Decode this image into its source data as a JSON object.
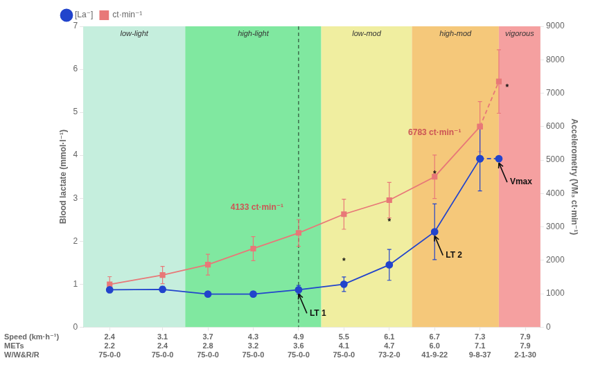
{
  "chart_data": {
    "type": "line",
    "ylabel": "Blood lactate (mmol·l⁻¹)",
    "y2label": "Accelerometry (VM₃ ct·min⁻¹)",
    "xlabel": "Speed (km·h⁻¹)",
    "xlim": [
      2.05,
      8.1
    ],
    "xticks": [
      2.4,
      3.1,
      3.7,
      4.3,
      4.9,
      5.5,
      6.1,
      6.7,
      7.3,
      7.9
    ],
    "ylim": [
      0,
      7
    ],
    "yticks": [
      0,
      1,
      2,
      3,
      4,
      5,
      6,
      7
    ],
    "y2lim": [
      0,
      9000
    ],
    "y2ticks": [
      0,
      1000,
      2000,
      3000,
      4000,
      5000,
      6000,
      7000,
      8000,
      9000
    ],
    "x_rows": [
      {
        "label": "METs",
        "values": [
          "2.2",
          "2.4",
          "2.8",
          "3.2",
          "3.6",
          "4.1",
          "4.7",
          "6.0",
          "7.1",
          "7.9"
        ]
      },
      {
        "label": "W/W&R/R",
        "values": [
          "75-0-0",
          "75-0-0",
          "75-0-0",
          "75-0-0",
          "75-0-0",
          "75-0-0",
          "73-2-0",
          "41-9-22",
          "9-8-37",
          "2-1-30"
        ]
      }
    ],
    "series": [
      {
        "name": "[La⁻]",
        "color": "#2244cc",
        "marker": "circle",
        "line_style": "solid",
        "axis": "y",
        "x": [
          2.4,
          3.1,
          3.7,
          4.3,
          4.9,
          5.5,
          6.1,
          6.7,
          7.3
        ],
        "values": [
          0.87,
          0.88,
          0.77,
          0.77,
          0.87,
          1.0,
          1.45,
          2.22,
          3.92
        ],
        "errors": [
          0.07,
          0.07,
          0.06,
          0.06,
          0.1,
          0.17,
          0.36,
          0.65,
          0.75
        ]
      },
      {
        "color": "#2244cc",
        "marker": "circle",
        "line_style": "dashed",
        "axis": "y",
        "x": [
          7.3,
          7.55
        ],
        "values": [
          3.92,
          3.92
        ]
      },
      {
        "name": "ct·min⁻¹",
        "color": "#e87878",
        "marker": "square",
        "line_style": "solid",
        "axis": "y2",
        "x": [
          2.4,
          3.1,
          3.7,
          4.3,
          4.9,
          5.5,
          6.1,
          6.7,
          7.3
        ],
        "values": [
          1280,
          1560,
          1870,
          2350,
          2820,
          3380,
          3800,
          4500,
          6000
        ],
        "errors": [
          230,
          260,
          310,
          360,
          400,
          450,
          530,
          650,
          750
        ]
      },
      {
        "color": "#e87878",
        "marker": "square",
        "line_style": "dashed",
        "axis": "y2",
        "x": [
          7.3,
          7.55
        ],
        "values": [
          6000,
          7350
        ],
        "errors": [
          null,
          950
        ]
      }
    ],
    "zones": [
      {
        "label": "low-light",
        "x0": 2.05,
        "x1": 3.4,
        "color": "#c5eedd"
      },
      {
        "label": "high-light",
        "x0": 3.4,
        "x1": 5.2,
        "color": "#80e8a0"
      },
      {
        "label": "low-mod",
        "x0": 5.2,
        "x1": 6.4,
        "color": "#f0eea0"
      },
      {
        "label": "high-mod",
        "x0": 6.4,
        "x1": 7.55,
        "color": "#f5c87a"
      },
      {
        "label": "vigorous",
        "x0": 7.55,
        "x1": 8.1,
        "color": "#f5a0a0"
      }
    ],
    "vlines": [
      4.9
    ],
    "annotations": [
      {
        "text": "LT 1",
        "x": 4.9,
        "y": 0.87,
        "arrow": true
      },
      {
        "text": "LT 2",
        "x": 6.7,
        "y": 2.22,
        "arrow": true
      },
      {
        "text": "Vmax",
        "x": 7.55,
        "y": 3.92,
        "arrow": true
      },
      {
        "text": "4133 ct·min⁻¹",
        "x": 4.35,
        "y": 2.78,
        "color": "#cc5555"
      },
      {
        "text": "6783 ct·min⁻¹",
        "x": 6.7,
        "y": 4.52,
        "color": "#cc5555"
      },
      {
        "text": "*",
        "x": 5.5,
        "y": 1.52
      },
      {
        "text": "*",
        "x": 6.1,
        "y": 2.45
      },
      {
        "text": "*",
        "x": 6.7,
        "y": 3.55
      },
      {
        "text": "*",
        "x": 7.55,
        "y": 7350,
        "axis": "y2"
      }
    ],
    "legend": "upper left",
    "grid": false
  }
}
